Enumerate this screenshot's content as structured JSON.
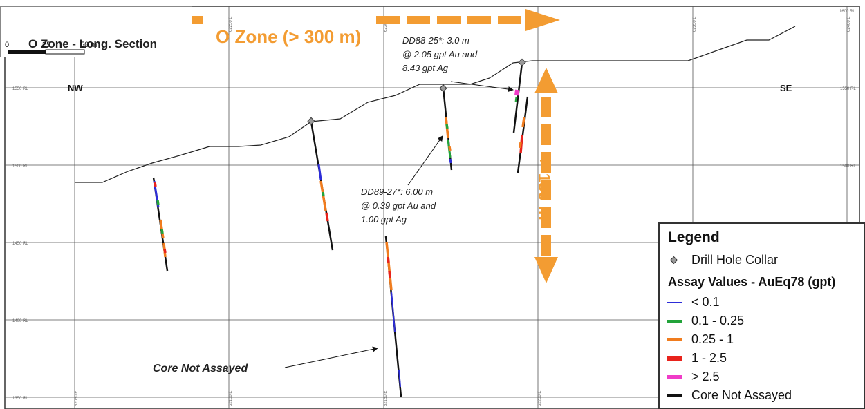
{
  "title": "O Zone - Long. Section",
  "scale_bar": {
    "ticks": [
      "0",
      "25",
      "50 m"
    ]
  },
  "directions": {
    "left": "NW",
    "right": "SE"
  },
  "grid": {
    "rl_labels": [
      "1550 RL",
      "1500 RL",
      "1450 RL",
      "1400 RL",
      "1350 RL",
      "1600 RL"
    ],
    "easting_labels": [
      "62050 E",
      "62100 E",
      "62150 E",
      "62200 E",
      "62250 E",
      "62300 E",
      "62350 E",
      "62400 E"
    ]
  },
  "dimensions": {
    "horizontal": "O Zone (> 300 m)",
    "vertical": "> 150 m"
  },
  "annotations": {
    "dd88_line1": "DD88-25*:  3.0 m",
    "dd88_line2": "@ 2.05 gpt Au and",
    "dd88_line3": "8.43 gpt Ag",
    "dd89_line1": "DD89-27*: 6.00 m",
    "dd89_line2": "@ 0.39 gpt Au and",
    "dd89_line3": "1.00 gpt Ag",
    "core_note": "Core Not Assayed"
  },
  "legend": {
    "heading": "Legend",
    "collar_label": "Drill Hole Collar",
    "assay_heading": "Assay Values - AuEq78 (gpt)",
    "items": [
      {
        "label": "< 0.1",
        "color": "#2d2dd8"
      },
      {
        "label": "0.1 - 0.25",
        "color": "#22a33a"
      },
      {
        "label": "0.25 - 1",
        "color": "#f07c1e"
      },
      {
        "label": "1 - 2.5",
        "color": "#e8231c"
      },
      {
        "label": "> 2.5",
        "color": "#f03cc8"
      },
      {
        "label": "Core Not Assayed",
        "color": "#111111"
      }
    ]
  },
  "colors": {
    "accent_orange": "#f39c32",
    "collar_fill": "#9a9a9a"
  }
}
